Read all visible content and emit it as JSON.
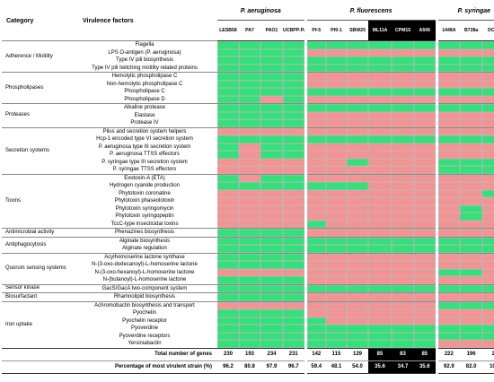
{
  "headers": {
    "category": "Category",
    "factor": "Virulence factors",
    "species": [
      "P. aeruginosa",
      "P. fluorescens",
      "P. syringae"
    ],
    "strains": [
      "LESB58",
      "PA7",
      "PAO1",
      "UCBPP-PA14",
      "Pf-5",
      "Pf0-1",
      "SBW25",
      "ML11A",
      "CPM15",
      "A506",
      "1448A",
      "B728a",
      "DC3000"
    ]
  },
  "colors": {
    "present": "#33e07a",
    "absent": "#f39393",
    "dark": "#000000"
  },
  "categories": [
    {
      "label": "Adherence / Motility",
      "rows": [
        {
          "factor": "Flagella",
          "cells": "1111111111111"
        },
        {
          "factor": "LPS O-antigen (P. aeruginosa)",
          "cells": "1111000000000"
        },
        {
          "factor": "Type IV pili biosynthesis",
          "cells": "1111111111111"
        },
        {
          "factor": "Type IV pili twitching motility related proteins",
          "cells": "1111111111111"
        }
      ]
    },
    {
      "label": "Phospholipases",
      "rows": [
        {
          "factor": "Hemolytic phospholipase C",
          "cells": "1111000000000"
        },
        {
          "factor": "Non-hemolytic phospholipase C",
          "cells": "1111000000000"
        },
        {
          "factor": "Phospholipase C",
          "cells": "1111111111111"
        },
        {
          "factor": "Phospholipase D",
          "cells": "1101000000000"
        }
      ]
    },
    {
      "label": "Proteases",
      "rows": [
        {
          "factor": "Alkaline protease",
          "cells": "1111111111111"
        },
        {
          "factor": "Elastase",
          "cells": "1111000000000"
        },
        {
          "factor": "Protease IV",
          "cells": "1111000000000"
        }
      ]
    },
    {
      "label": "Secretion systems",
      "rows": [
        {
          "factor": "Pilus and secretion system helpers",
          "cells": "0000000000000"
        },
        {
          "factor": "Hcp-1 encoded type VI secretion system",
          "cells": "1111111111111"
        },
        {
          "factor": "P. aeruginosa type III secretion system",
          "cells": "1011000000000"
        },
        {
          "factor": "P. aeruginosa TTSS effectors",
          "cells": "1011000000000"
        },
        {
          "factor": "P. syringae type III secretion system",
          "cells": "0000001000111"
        },
        {
          "factor": "P. syringae TTSS effectors",
          "cells": "0000000000111"
        }
      ]
    },
    {
      "label": "Toxins",
      "rows": [
        {
          "factor": "Exotoxin-A (ETA)",
          "cells": "1011000000000"
        },
        {
          "factor": "Hydrogen cyanide production",
          "cells": "1111111000000"
        },
        {
          "factor": "Phytotoxin coronatine",
          "cells": "0000000000001"
        },
        {
          "factor": "Phytotoxin phaseolotoxin",
          "cells": "0000000000000"
        },
        {
          "factor": "Phytotoxin syringomycin",
          "cells": "0000000000010"
        },
        {
          "factor": "Phytotoxin syringopeptin",
          "cells": "0000000000010"
        },
        {
          "factor": "TccC-type insecticidal toxins",
          "cells": "0000100000000"
        }
      ]
    },
    {
      "label": "Antimicrobial activity",
      "rows": [
        {
          "factor": "Phenazines biosynthesis",
          "cells": "1111000000000"
        }
      ]
    },
    {
      "label": "Antiphagocytosis",
      "rows": [
        {
          "factor": "Alginate biosynthesis",
          "cells": "1111111111111"
        },
        {
          "factor": "Alginate regulation",
          "cells": "1111111111111"
        }
      ]
    },
    {
      "label": "Quorum sensing systems",
      "rows": [
        {
          "factor": "Acylhomoserine lactone synthase",
          "cells": "1111000000000"
        },
        {
          "factor": "N-(3-oxo-dodecanoyl)-L-homoserine lactone",
          "cells": "1111000000000"
        },
        {
          "factor": "N-(3-oxo-hexanoyl)-L-homoserine lactone",
          "cells": "0000000000110"
        },
        {
          "factor": "N-(butanoyl)-L-homoserine lactone",
          "cells": "1111000000000"
        }
      ]
    },
    {
      "label": "Sensor kinase",
      "rows": [
        {
          "factor": "GacS/GacA two-component system",
          "cells": "1111111111111"
        }
      ]
    },
    {
      "label": "Biosurfactant",
      "rows": [
        {
          "factor": "Rhamnolipid biosynthesis",
          "cells": "1111000000000"
        }
      ]
    },
    {
      "label": "Iron uptake",
      "rows": [
        {
          "factor": "Achromobactin biosynthesis and transport",
          "cells": "0000000000111"
        },
        {
          "factor": "Pyochelin",
          "cells": "1111000000000"
        },
        {
          "factor": "Pyochelin receptor",
          "cells": "1111100000000"
        },
        {
          "factor": "Pyoverdine",
          "cells": "1111111111111"
        },
        {
          "factor": "Pyoverdine receptors",
          "cells": "1111111111111"
        },
        {
          "factor": "Yersiniabactin",
          "cells": "1111111111000"
        }
      ]
    }
  ],
  "summary": {
    "total_label": "Total number of genes",
    "total": [
      "230",
      "193",
      "234",
      "231",
      "142",
      "115",
      "129",
      "85",
      "83",
      "85",
      "222",
      "196",
      "239"
    ],
    "pct_label": "Percentage of most virulent strain (%)",
    "pct": [
      "96.2",
      "80.8",
      "97.9",
      "96.7",
      "59.4",
      "48.1",
      "54.0",
      "35.6",
      "34.7",
      "35.6",
      "92.9",
      "82.0",
      "100.0"
    ]
  }
}
